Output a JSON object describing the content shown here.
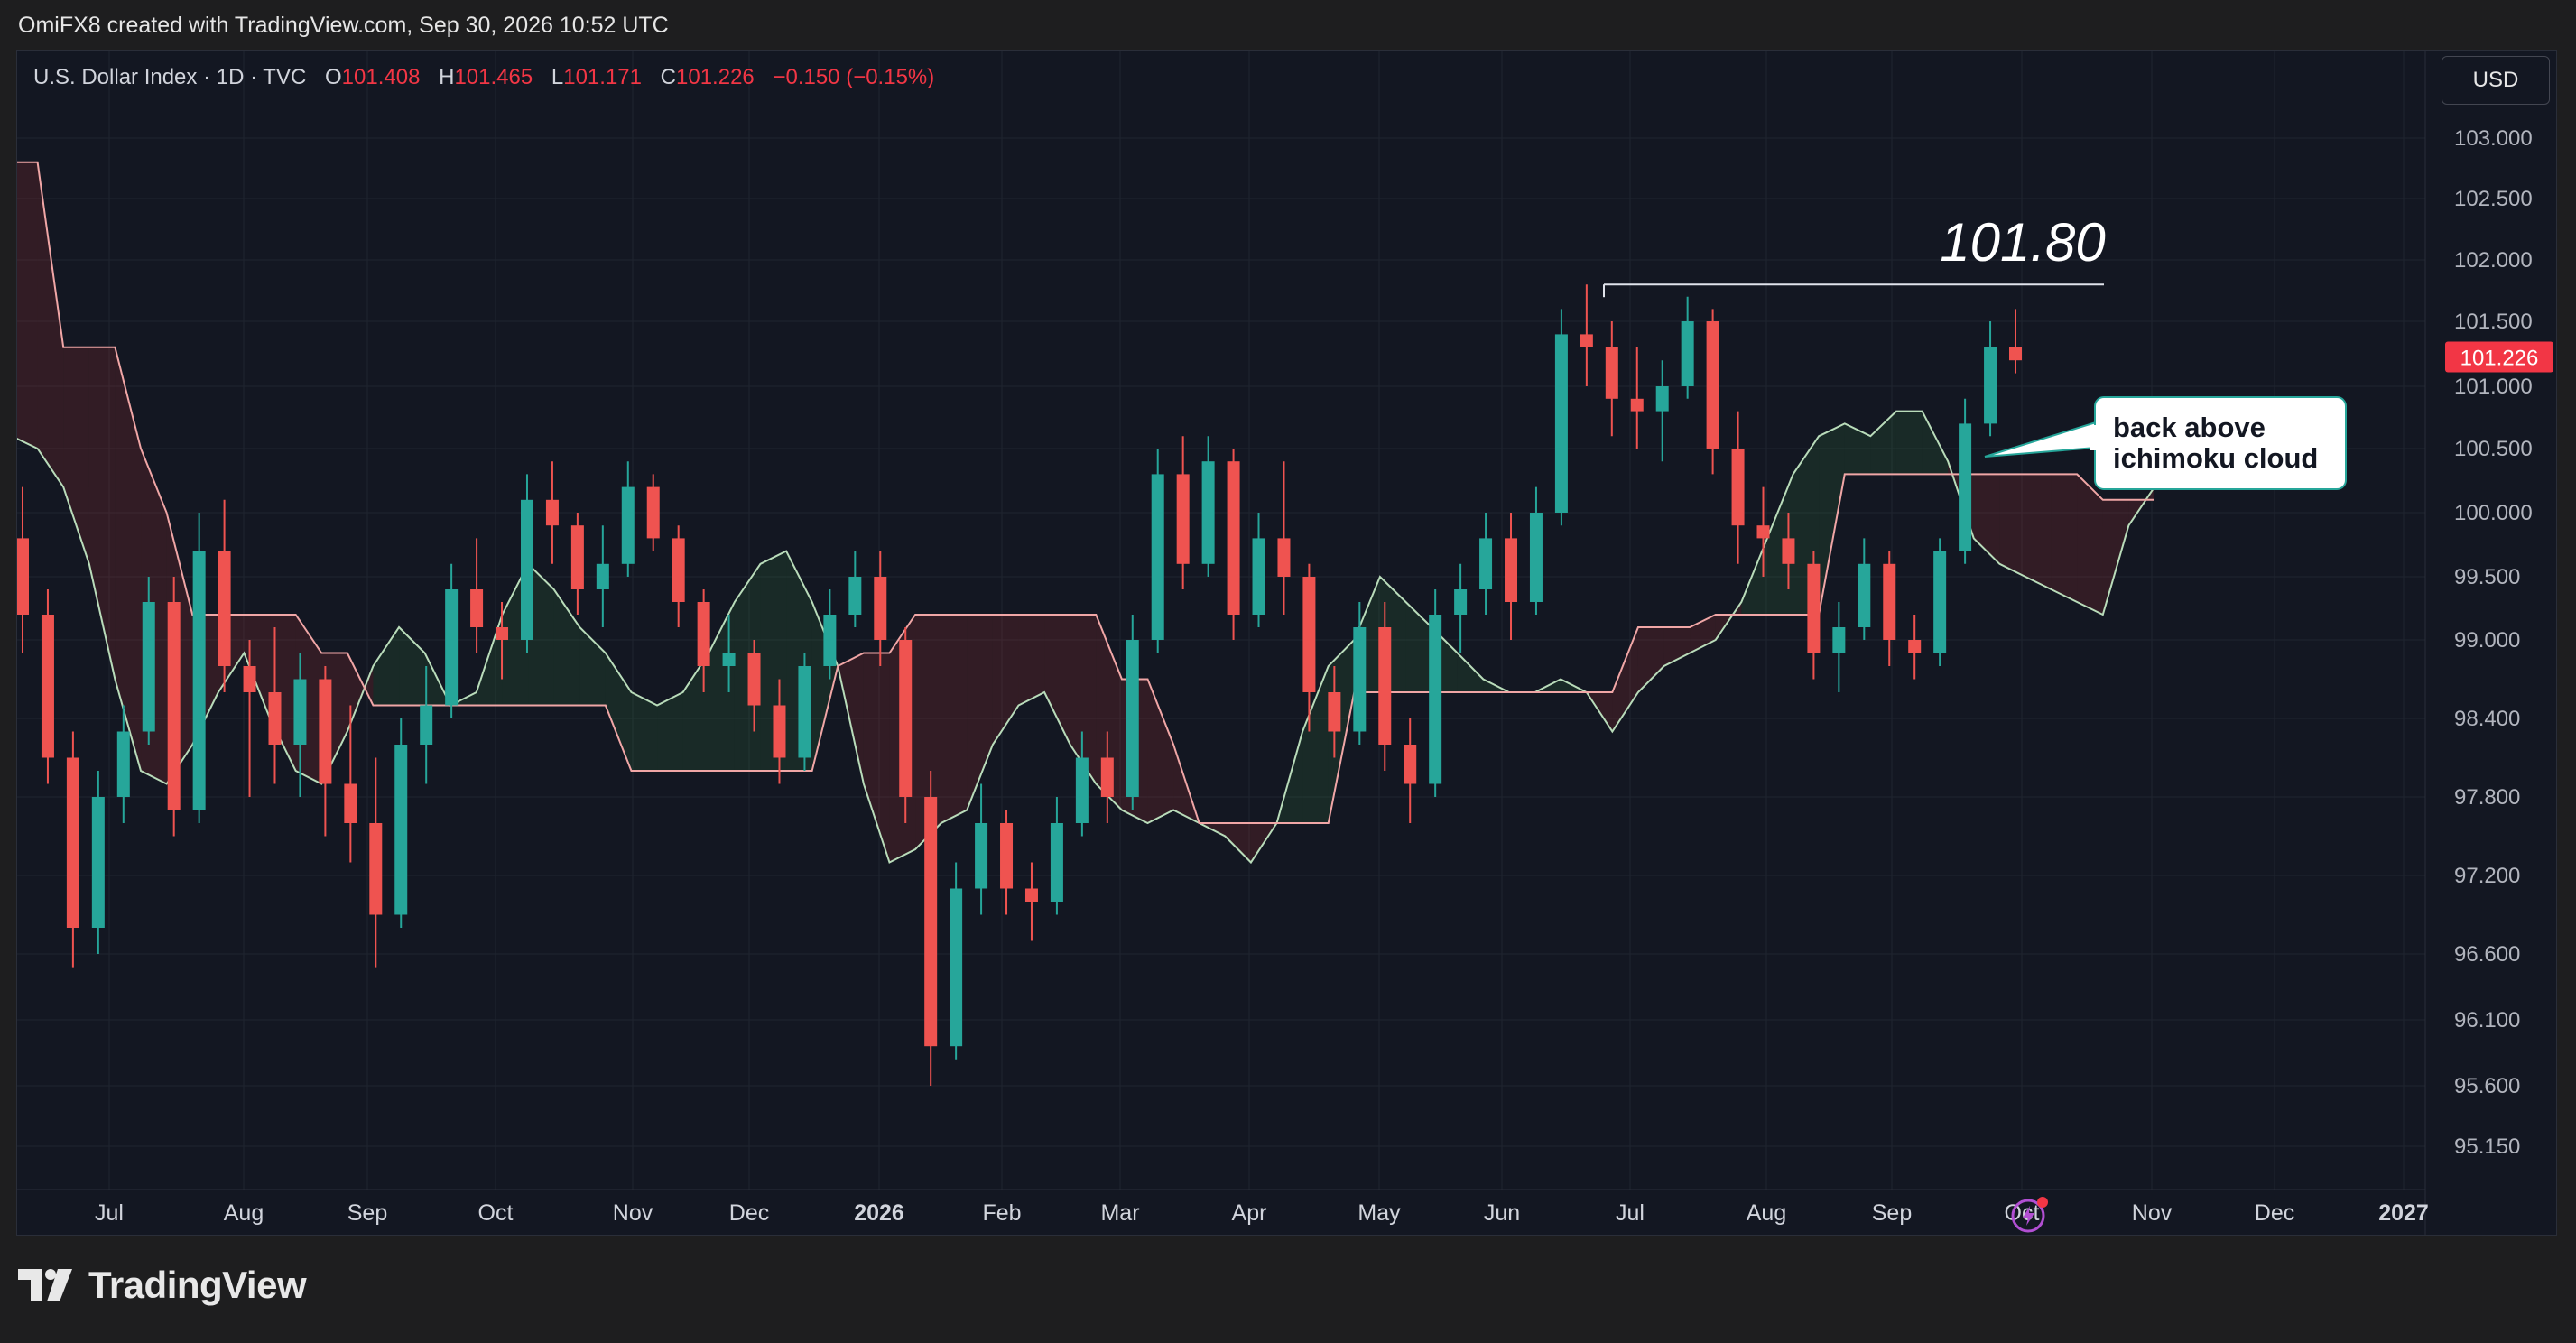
{
  "header": {
    "caption": "OmiFX8 created with TradingView.com, Sep 30, 2026 10:52 UTC"
  },
  "legend": {
    "symbol": "U.S. Dollar Index · 1D · TVC",
    "o_label": "O",
    "o": "101.408",
    "h_label": "H",
    "h": "101.465",
    "l_label": "L",
    "l": "101.171",
    "c_label": "C",
    "c": "101.226",
    "change": "−0.150 (−0.15%)"
  },
  "currency_button": "USD",
  "brand": {
    "name": "TradingView"
  },
  "colors": {
    "up": "#26a69a",
    "down": "#ef5350",
    "background": "#131722",
    "grid": "#1f2430",
    "spanA": "#b9dcba",
    "spanB": "#f0a6a6"
  },
  "chart_data": {
    "type": "candlestick",
    "symbol": "U.S. Dollar Index",
    "timeframe": "1D",
    "price_axis": {
      "ticks": [
        "103.000",
        "102.500",
        "102.000",
        "101.500",
        "101.000",
        "100.500",
        "100.000",
        "99.500",
        "99.000",
        "98.400",
        "97.800",
        "97.200",
        "96.600",
        "96.100",
        "95.600",
        "95.150"
      ],
      "current_price": "101.226"
    },
    "time_axis": {
      "ticks": [
        "Jul",
        "Aug",
        "Sep",
        "Oct",
        "Nov",
        "Dec",
        "2026",
        "Feb",
        "Mar",
        "Apr",
        "May",
        "Jun",
        "Jul",
        "Aug",
        "Sep",
        "Oct",
        "Nov",
        "Dec",
        "2027"
      ]
    },
    "ohlc_approx": [
      [
        99.8,
        100.2,
        98.9,
        99.2
      ],
      [
        99.2,
        99.4,
        97.9,
        98.1
      ],
      [
        98.1,
        98.3,
        96.5,
        96.8
      ],
      [
        96.8,
        98.0,
        96.6,
        97.8
      ],
      [
        97.8,
        98.5,
        97.6,
        98.3
      ],
      [
        98.3,
        99.5,
        98.2,
        99.3
      ],
      [
        99.3,
        99.5,
        97.5,
        97.7
      ],
      [
        97.7,
        100.0,
        97.6,
        99.7
      ],
      [
        99.7,
        100.1,
        98.6,
        98.8
      ],
      [
        98.8,
        99.0,
        97.8,
        98.6
      ],
      [
        98.6,
        99.1,
        97.9,
        98.2
      ],
      [
        98.2,
        98.9,
        97.8,
        98.7
      ],
      [
        98.7,
        98.8,
        97.5,
        97.9
      ],
      [
        97.9,
        98.5,
        97.3,
        97.6
      ],
      [
        97.6,
        98.1,
        96.5,
        96.9
      ],
      [
        96.9,
        98.4,
        96.8,
        98.2
      ],
      [
        98.2,
        98.8,
        97.9,
        98.5
      ],
      [
        98.5,
        99.6,
        98.4,
        99.4
      ],
      [
        99.4,
        99.8,
        98.9,
        99.1
      ],
      [
        99.1,
        99.3,
        98.7,
        99.0
      ],
      [
        99.0,
        100.3,
        98.9,
        100.1
      ],
      [
        100.1,
        100.4,
        99.6,
        99.9
      ],
      [
        99.9,
        100.0,
        99.2,
        99.4
      ],
      [
        99.4,
        99.9,
        99.1,
        99.6
      ],
      [
        99.6,
        100.4,
        99.5,
        100.2
      ],
      [
        100.2,
        100.3,
        99.7,
        99.8
      ],
      [
        99.8,
        99.9,
        99.1,
        99.3
      ],
      [
        99.3,
        99.4,
        98.6,
        98.8
      ],
      [
        98.8,
        99.2,
        98.6,
        98.9
      ],
      [
        98.9,
        99.0,
        98.3,
        98.5
      ],
      [
        98.5,
        98.7,
        97.9,
        98.1
      ],
      [
        98.1,
        98.9,
        98.0,
        98.8
      ],
      [
        98.8,
        99.4,
        98.7,
        99.2
      ],
      [
        99.2,
        99.7,
        99.1,
        99.5
      ],
      [
        99.5,
        99.7,
        98.8,
        99.0
      ],
      [
        99.0,
        99.1,
        97.6,
        97.8
      ],
      [
        97.8,
        98.0,
        95.6,
        95.9
      ],
      [
        95.9,
        97.3,
        95.8,
        97.1
      ],
      [
        97.1,
        97.9,
        96.9,
        97.6
      ],
      [
        97.6,
        97.7,
        96.9,
        97.1
      ],
      [
        97.1,
        97.3,
        96.7,
        97.0
      ],
      [
        97.0,
        97.8,
        96.9,
        97.6
      ],
      [
        97.6,
        98.3,
        97.5,
        98.1
      ],
      [
        98.1,
        98.3,
        97.6,
        97.8
      ],
      [
        97.8,
        99.2,
        97.7,
        99.0
      ],
      [
        99.0,
        100.5,
        98.9,
        100.3
      ],
      [
        100.3,
        100.6,
        99.4,
        99.6
      ],
      [
        99.6,
        100.6,
        99.5,
        100.4
      ],
      [
        100.4,
        100.5,
        99.0,
        99.2
      ],
      [
        99.2,
        100.0,
        99.1,
        99.8
      ],
      [
        99.8,
        100.4,
        99.2,
        99.5
      ],
      [
        99.5,
        99.6,
        98.3,
        98.6
      ],
      [
        98.6,
        98.8,
        98.1,
        98.3
      ],
      [
        98.3,
        99.3,
        98.2,
        99.1
      ],
      [
        99.1,
        99.3,
        98.0,
        98.2
      ],
      [
        98.2,
        98.4,
        97.6,
        97.9
      ],
      [
        97.9,
        99.4,
        97.8,
        99.2
      ],
      [
        99.2,
        99.6,
        98.9,
        99.4
      ],
      [
        99.4,
        100.0,
        99.2,
        99.8
      ],
      [
        99.8,
        100.0,
        99.0,
        99.3
      ],
      [
        99.3,
        100.2,
        99.2,
        100.0
      ],
      [
        100.0,
        101.6,
        99.9,
        101.4
      ],
      [
        101.4,
        101.8,
        101.0,
        101.3
      ],
      [
        101.3,
        101.5,
        100.6,
        100.9
      ],
      [
        100.9,
        101.3,
        100.5,
        100.8
      ],
      [
        100.8,
        101.2,
        100.4,
        101.0
      ],
      [
        101.0,
        101.7,
        100.9,
        101.5
      ],
      [
        101.5,
        101.6,
        100.3,
        100.5
      ],
      [
        100.5,
        100.8,
        99.6,
        99.9
      ],
      [
        99.9,
        100.2,
        99.5,
        99.8
      ],
      [
        99.8,
        100.0,
        99.4,
        99.6
      ],
      [
        99.6,
        99.7,
        98.7,
        98.9
      ],
      [
        98.9,
        99.3,
        98.6,
        99.1
      ],
      [
        99.1,
        99.8,
        99.0,
        99.6
      ],
      [
        99.6,
        99.7,
        98.8,
        99.0
      ],
      [
        99.0,
        99.2,
        98.7,
        98.9
      ],
      [
        98.9,
        99.8,
        98.8,
        99.7
      ],
      [
        99.7,
        100.9,
        99.6,
        100.7
      ],
      [
        100.7,
        101.5,
        100.6,
        101.3
      ],
      [
        101.3,
        101.6,
        101.1,
        101.2
      ]
    ],
    "ichimoku": {
      "tenkan_kijun_hidden": true,
      "senkou_span_a": [
        100.6,
        100.5,
        100.2,
        99.6,
        98.7,
        98.0,
        97.9,
        98.2,
        98.6,
        98.9,
        98.4,
        98.0,
        97.9,
        98.3,
        98.8,
        99.1,
        98.9,
        98.5,
        98.6,
        99.2,
        99.6,
        99.4,
        99.1,
        98.9,
        98.6,
        98.5,
        98.6,
        98.9,
        99.3,
        99.6,
        99.7,
        99.3,
        98.8,
        97.9,
        97.3,
        97.4,
        97.6,
        97.7,
        98.2,
        98.5,
        98.6,
        98.2,
        97.9,
        97.7,
        97.6,
        97.7,
        97.6,
        97.5,
        97.3,
        97.6,
        98.3,
        98.8,
        99.0,
        99.5,
        99.3,
        99.1,
        98.9,
        98.7,
        98.6,
        98.6,
        98.7,
        98.6,
        98.3,
        98.6,
        98.8,
        98.9,
        99.0,
        99.3,
        99.8,
        100.3,
        100.6,
        100.7,
        100.6,
        100.8,
        100.8,
        100.4,
        99.8,
        99.6,
        99.5,
        99.4,
        99.3,
        99.2,
        99.9,
        100.2
      ],
      "senkou_span_b": [
        102.8,
        102.8,
        101.3,
        101.3,
        101.3,
        100.5,
        100.0,
        99.2,
        99.2,
        99.2,
        99.2,
        99.2,
        98.9,
        98.9,
        98.5,
        98.5,
        98.5,
        98.5,
        98.5,
        98.5,
        98.5,
        98.5,
        98.5,
        98.5,
        98.0,
        98.0,
        98.0,
        98.0,
        98.0,
        98.0,
        98.0,
        98.0,
        98.8,
        98.9,
        98.9,
        99.2,
        99.2,
        99.2,
        99.2,
        99.2,
        99.2,
        99.2,
        99.2,
        98.7,
        98.7,
        98.2,
        97.6,
        97.6,
        97.6,
        97.6,
        97.6,
        97.6,
        98.6,
        98.6,
        98.6,
        98.6,
        98.6,
        98.6,
        98.6,
        98.6,
        98.6,
        98.6,
        98.6,
        99.1,
        99.1,
        99.1,
        99.2,
        99.2,
        99.2,
        99.2,
        99.2,
        100.3,
        100.3,
        100.3,
        100.3,
        100.3,
        100.3,
        100.3,
        100.3,
        100.3,
        100.3,
        100.1,
        100.1,
        100.1
      ]
    },
    "annotations": [
      {
        "type": "horizontal_line",
        "label": "101.80",
        "value": 101.8
      },
      {
        "type": "callout",
        "text_line1": "back above",
        "text_line2": "ichimoku cloud"
      }
    ],
    "grid": true
  }
}
